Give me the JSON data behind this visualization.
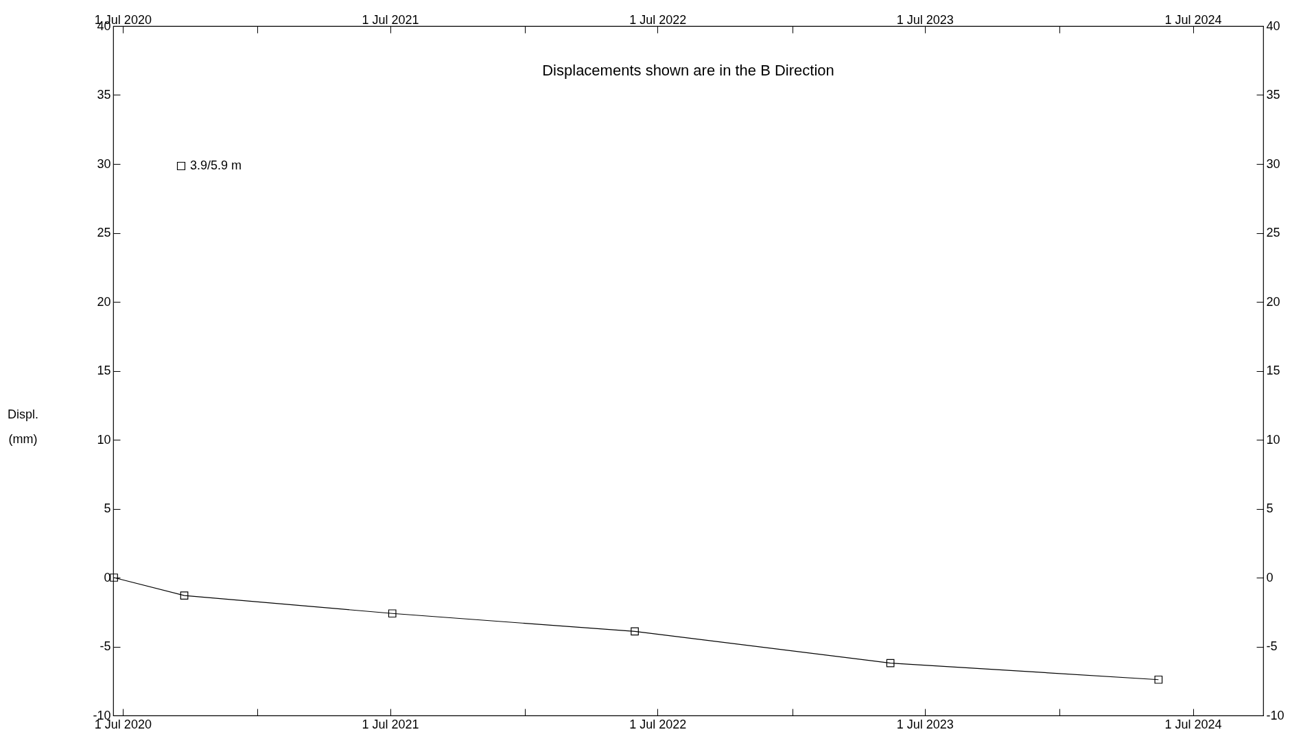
{
  "chart_data": {
    "type": "line",
    "title": "Displacements shown are in the  B Direction",
    "ylabel": "Displ. (mm)",
    "x": [
      "2020-06-19",
      "2020-09-23",
      "2021-07-04",
      "2022-05-31",
      "2023-05-15",
      "2024-05-15"
    ],
    "series": [
      {
        "name": "3.9/5.9 m",
        "color": "#000000",
        "values": [
          0,
          -1.3,
          -2.6,
          -3.9,
          -6.2,
          -7.4
        ]
      }
    ],
    "xlim": [
      "2020-06-18",
      "2024-10-05"
    ],
    "xticks": [
      {
        "value": "2020-07-01",
        "label": "1 Jul 2020"
      },
      {
        "value": "2021-01-01",
        "label": null
      },
      {
        "value": "2021-07-01",
        "label": "1 Jul 2021"
      },
      {
        "value": "2022-01-01",
        "label": null
      },
      {
        "value": "2022-07-01",
        "label": "1 Jul 2022"
      },
      {
        "value": "2023-01-01",
        "label": null
      },
      {
        "value": "2023-07-01",
        "label": "1 Jul 2023"
      },
      {
        "value": "2024-01-01",
        "label": null
      },
      {
        "value": "2024-07-01",
        "label": "1 Jul 2024"
      }
    ],
    "x2lim": [
      "2020-06-18",
      "2024-10-05"
    ],
    "x2ticks": [
      {
        "value": "2020-07-01",
        "label": "1 Jul 2020"
      },
      {
        "value": "2021-01-01",
        "label": null
      },
      {
        "value": "2021-07-01",
        "label": "1 Jul 2021"
      },
      {
        "value": "2022-01-01",
        "label": null
      },
      {
        "value": "2022-07-01",
        "label": "1 Jul 2022"
      },
      {
        "value": "2023-01-01",
        "label": null
      },
      {
        "value": "2023-07-01",
        "label": "1 Jul 2023"
      },
      {
        "value": "2024-01-01",
        "label": null
      },
      {
        "value": "2024-07-01",
        "label": "1 Jul 2024"
      }
    ],
    "ylim": [
      -10,
      40
    ],
    "yticks": [
      -10,
      -5,
      0,
      5,
      10,
      15,
      20,
      25,
      30,
      35,
      40
    ],
    "y2lim": [
      -10,
      40
    ],
    "y2ticks": [
      -10,
      -5,
      0,
      5,
      10,
      15,
      20,
      25,
      30,
      35,
      40
    ],
    "legend": "top left",
    "marker": "square",
    "line_style": "solid"
  }
}
